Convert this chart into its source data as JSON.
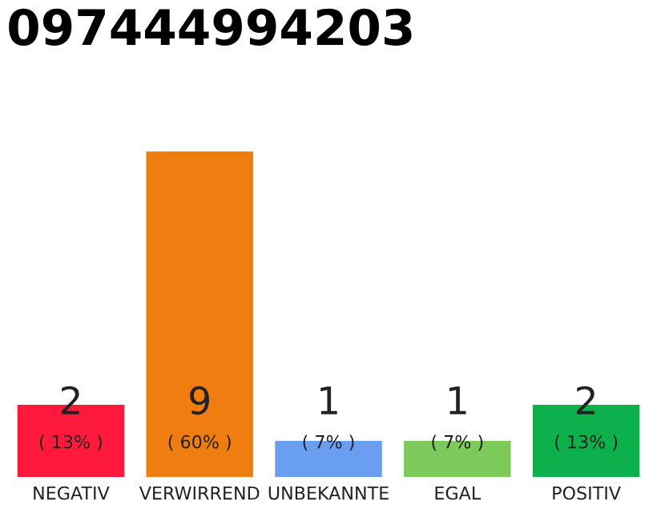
{
  "chart_data": {
    "type": "bar",
    "title": "097444994203",
    "categories": [
      "NEGATIV",
      "VERWIRREND",
      "UNBEKANNTE",
      "EGAL",
      "POSITIV"
    ],
    "values": [
      2,
      9,
      1,
      1,
      2
    ],
    "colors": [
      "#ff1a3c",
      "#f07d0f",
      "#6a9eef",
      "#7dc95c",
      "#0db14b"
    ],
    "value_labels": [
      "2\n( 13% )",
      "9\n( 60% )",
      "1\n( 7% )",
      "1\n( 7% )",
      "2\n( 13% )"
    ],
    "grid": false,
    "legend": false
  }
}
